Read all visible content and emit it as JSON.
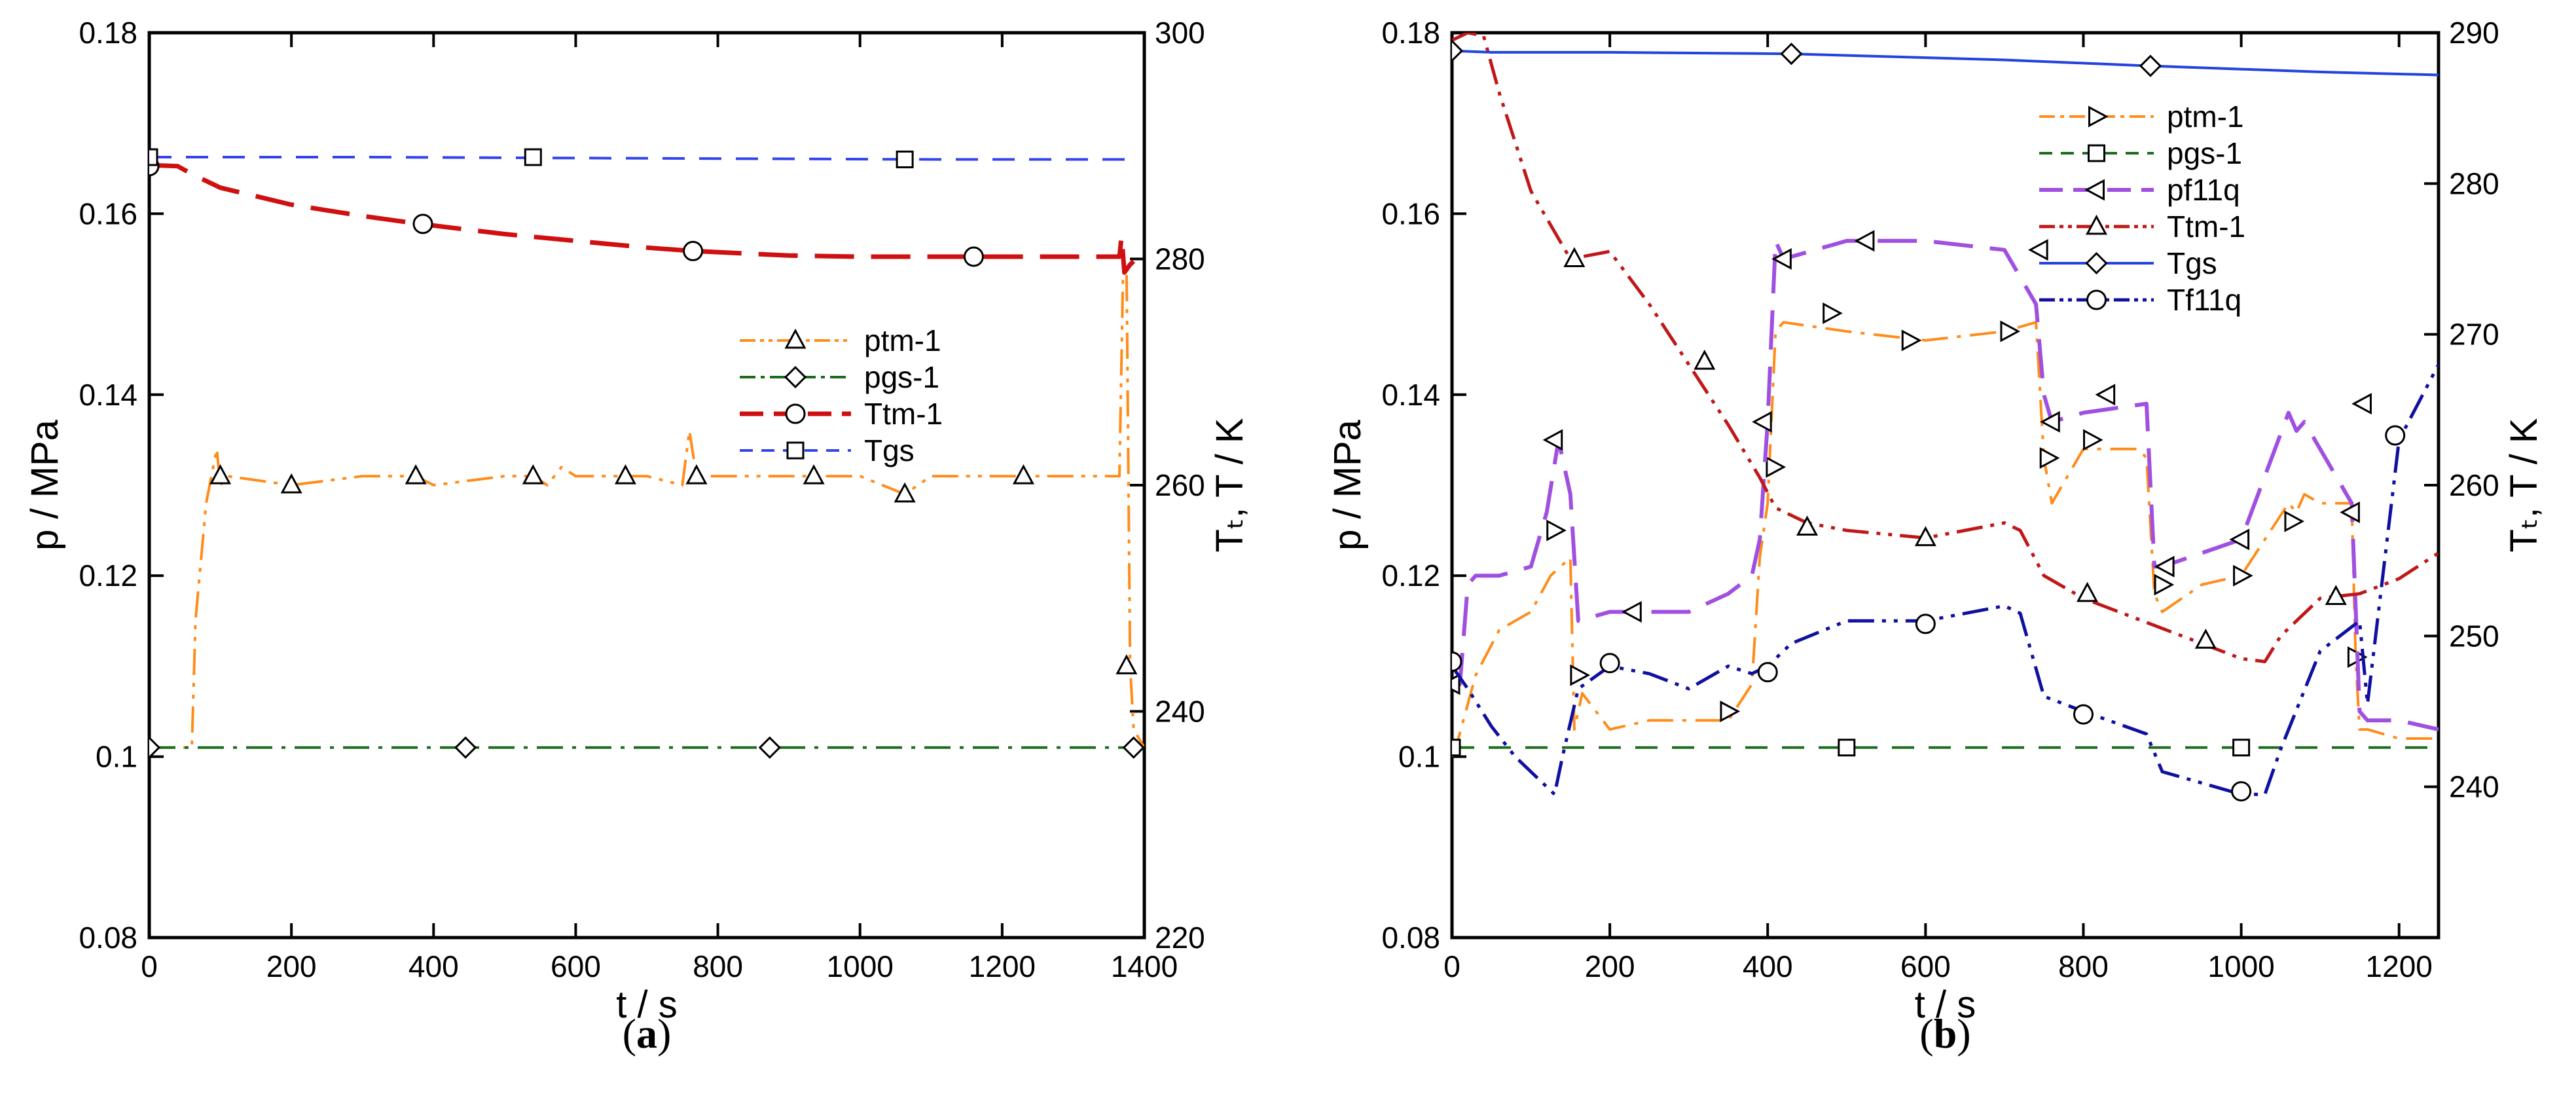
{
  "chart_data": [
    {
      "type": "line",
      "panel_label": "a",
      "xlabel": "t / s",
      "ylabel_left": "p / MPa",
      "ylabel_right": "Tₜ, T / K",
      "xlim": [
        0,
        1400
      ],
      "ylim_left": [
        0.08,
        0.18
      ],
      "ylim_right": [
        220,
        300
      ],
      "x_ticks": [
        "0",
        "200",
        "400",
        "600",
        "800",
        "1000",
        "1200",
        "1400"
      ],
      "y_left_ticks": [
        "0.08",
        "0.1",
        "0.12",
        "0.14",
        "0.16",
        "0.18"
      ],
      "y_right_ticks": [
        "220",
        "240",
        "260",
        "280",
        "300"
      ],
      "legend_position": "center-right",
      "series": [
        {
          "name": "ptm-1",
          "axis": "left",
          "color": "#FF8C1A",
          "dash": "dashdotdot",
          "marker": "triangle",
          "width": 4,
          "x": [
            0,
            60,
            65,
            80,
            95,
            100,
            110,
            200,
            300,
            375,
            400,
            500,
            540,
            560,
            580,
            600,
            700,
            750,
            760,
            770,
            800,
            900,
            1000,
            1063,
            1100,
            1200,
            1300,
            1365,
            1370,
            1375,
            1380,
            1385,
            1400
          ],
          "y": [
            0.101,
            0.101,
            0.115,
            0.128,
            0.134,
            0.13,
            0.131,
            0.13,
            0.131,
            0.131,
            0.13,
            0.131,
            0.131,
            0.13,
            0.132,
            0.131,
            0.131,
            0.13,
            0.136,
            0.131,
            0.131,
            0.131,
            0.131,
            0.129,
            0.131,
            0.131,
            0.131,
            0.131,
            0.153,
            0.154,
            0.11,
            0.103,
            0.101
          ],
          "marker_x": [
            100,
            200,
            375,
            540,
            670,
            770,
            935,
            1063,
            1230,
            1375
          ],
          "marker_y": [
            0.131,
            0.13,
            0.131,
            0.131,
            0.131,
            0.131,
            0.131,
            0.129,
            0.131,
            0.11
          ]
        },
        {
          "name": "pgs-1",
          "axis": "left",
          "color": "#1E6B1E",
          "dash": "dashdot",
          "marker": "diamond",
          "width": 4,
          "x": [
            0,
            1400
          ],
          "y": [
            0.101,
            0.101
          ],
          "marker_x": [
            0,
            445,
            873,
            1385
          ],
          "marker_y": [
            0.101,
            0.101,
            0.101,
            0.101
          ]
        },
        {
          "name": "Ttm-1",
          "axis": "right",
          "color": "#D01010",
          "dash": "longdash",
          "marker": "circle",
          "width": 7,
          "x": [
            0,
            40,
            60,
            100,
            200,
            300,
            380,
            500,
            600,
            700,
            765,
            800,
            900,
            1000,
            1100,
            1160,
            1200,
            1300,
            1365,
            1368,
            1372,
            1380,
            1385
          ],
          "y": [
            288.3,
            288.2,
            287.5,
            286.3,
            284.8,
            283.8,
            283.1,
            282.2,
            281.6,
            281.0,
            280.7,
            280.6,
            280.3,
            280.2,
            280.2,
            280.2,
            280.2,
            280.2,
            280.2,
            282.0,
            278.8,
            279.5,
            279.8
          ],
          "marker_x": [
            0,
            385,
            765,
            1160
          ],
          "marker_y": [
            288.2,
            283.1,
            280.7,
            280.2
          ]
        },
        {
          "name": "Tgs",
          "axis": "right",
          "color": "#3344EE",
          "dash": "dash",
          "marker": "square",
          "width": 4,
          "x": [
            0,
            300,
            700,
            1100,
            1385
          ],
          "y": [
            289.0,
            289.0,
            288.9,
            288.8,
            288.8
          ],
          "marker_x": [
            0,
            540,
            1063
          ],
          "marker_y": [
            289.0,
            289.0,
            288.8
          ]
        }
      ]
    },
    {
      "type": "line",
      "panel_label": "b",
      "xlabel": "t / s",
      "ylabel_left": "p / MPa",
      "ylabel_right": "Tₜ, T / K",
      "xlim": [
        0,
        1250
      ],
      "ylim_left": [
        0.08,
        0.18
      ],
      "ylim_right": [
        230,
        290
      ],
      "x_ticks": [
        "0",
        "200",
        "400",
        "600",
        "800",
        "1000",
        "1200"
      ],
      "y_left_ticks": [
        "0.08",
        "0.1",
        "0.12",
        "0.14",
        "0.16",
        "0.18"
      ],
      "y_right_ticks": [
        "240",
        "250",
        "260",
        "270",
        "280",
        "290"
      ],
      "legend_position": "top-right",
      "series": [
        {
          "name": "ptm-1",
          "axis": "left",
          "color": "#FF8C1A",
          "dash": "dashdot",
          "marker": "triangle-right",
          "width": 4,
          "x": [
            0,
            5,
            30,
            60,
            100,
            125,
            150,
            155,
            165,
            200,
            250,
            300,
            350,
            380,
            390,
            400,
            410,
            420,
            500,
            600,
            700,
            740,
            750,
            760,
            800,
            870,
            880,
            890,
            900,
            950,
            1000,
            1060,
            1070,
            1080,
            1100,
            1140,
            1145,
            1150,
            1160,
            1200,
            1250
          ],
          "y": [
            0.1,
            0.101,
            0.109,
            0.114,
            0.116,
            0.12,
            0.122,
            0.103,
            0.107,
            0.103,
            0.104,
            0.104,
            0.104,
            0.108,
            0.122,
            0.128,
            0.147,
            0.148,
            0.147,
            0.146,
            0.147,
            0.148,
            0.133,
            0.128,
            0.134,
            0.134,
            0.133,
            0.118,
            0.116,
            0.119,
            0.12,
            0.128,
            0.127,
            0.129,
            0.128,
            0.128,
            0.111,
            0.103,
            0.103,
            0.102,
            0.102
          ],
          "marker_x": [
            130,
            160,
            350,
            408,
            480,
            580,
            705,
            755,
            810,
            900,
            1000,
            1065,
            1145
          ],
          "marker_y": [
            0.125,
            0.109,
            0.105,
            0.132,
            0.149,
            0.146,
            0.147,
            0.133,
            0.135,
            0.119,
            0.12,
            0.126,
            0.111
          ]
        },
        {
          "name": "pgs-1",
          "axis": "left",
          "color": "#1E6B1E",
          "dash": "dash",
          "marker": "square",
          "width": 4,
          "x": [
            0,
            1250
          ],
          "y": [
            0.101,
            0.101
          ],
          "marker_x": [
            0,
            500,
            1000
          ],
          "marker_y": [
            0.101,
            0.101,
            0.101
          ]
        },
        {
          "name": "pf11q",
          "axis": "left",
          "color": "#A050E0",
          "dash": "longdash",
          "marker": "triangle-left",
          "width": 6,
          "x": [
            0,
            10,
            20,
            30,
            60,
            100,
            120,
            135,
            150,
            160,
            200,
            250,
            300,
            350,
            380,
            390,
            400,
            410,
            420,
            500,
            600,
            700,
            740,
            750,
            760,
            800,
            880,
            890,
            900,
            1000,
            1060,
            1070,
            1080,
            1140,
            1150,
            1160,
            1200,
            1250
          ],
          "y": [
            0.108,
            0.108,
            0.119,
            0.12,
            0.12,
            0.121,
            0.127,
            0.135,
            0.129,
            0.115,
            0.116,
            0.116,
            0.116,
            0.118,
            0.12,
            0.124,
            0.137,
            0.157,
            0.155,
            0.157,
            0.157,
            0.156,
            0.15,
            0.14,
            0.137,
            0.138,
            0.139,
            0.121,
            0.121,
            0.124,
            0.138,
            0.136,
            0.137,
            0.128,
            0.105,
            0.104,
            0.104,
            0.103
          ],
          "marker_x": [
            0,
            130,
            230,
            395,
            420,
            525,
            745,
            760,
            830,
            905,
            1000,
            1140,
            1155
          ],
          "marker_y": [
            0.108,
            0.135,
            0.116,
            0.137,
            0.155,
            0.157,
            0.156,
            0.137,
            0.14,
            0.121,
            0.124,
            0.127,
            0.139
          ]
        },
        {
          "name": "Ttm-1",
          "axis": "right",
          "color": "#C01818",
          "dash": "dashdotdot",
          "marker": "triangle",
          "width": 5,
          "x": [
            0,
            20,
            40,
            60,
            100,
            150,
            200,
            250,
            300,
            350,
            390,
            410,
            450,
            500,
            600,
            700,
            720,
            750,
            800,
            900,
            950,
            1000,
            1030,
            1050,
            1100,
            1150,
            1200,
            1250
          ],
          "y": [
            289.5,
            290.0,
            289.8,
            286.0,
            279.5,
            275.0,
            275.5,
            272.0,
            268.0,
            264.0,
            260.5,
            258.5,
            257.5,
            257.0,
            256.5,
            257.5,
            257.0,
            254.0,
            252.5,
            250.5,
            249.5,
            248.5,
            248.3,
            250.0,
            252.5,
            252.8,
            253.8,
            255.5
          ],
          "marker_x": [
            155,
            320,
            450,
            600,
            805,
            955,
            1120
          ],
          "marker_y": [
            275.0,
            268.2,
            257.2,
            256.5,
            252.8,
            249.7,
            252.6
          ]
        },
        {
          "name": "Tgs",
          "axis": "right",
          "color": "#2244DD",
          "dash": "solid",
          "marker": "diamond",
          "width": 4,
          "x": [
            0,
            50,
            200,
            430,
            700,
            885,
            1100,
            1250
          ],
          "y": [
            288.8,
            288.7,
            288.7,
            288.6,
            288.2,
            287.8,
            287.4,
            287.2
          ],
          "marker_x": [
            0,
            430,
            885
          ],
          "marker_y": [
            288.8,
            288.6,
            287.8
          ]
        },
        {
          "name": "Tf11q",
          "axis": "right",
          "color": "#1010A0",
          "dash": "dashdotdot",
          "marker": "circle",
          "width": 5,
          "x": [
            0,
            20,
            50,
            80,
            130,
            140,
            160,
            200,
            250,
            300,
            350,
            380,
            400,
            430,
            500,
            600,
            700,
            720,
            750,
            800,
            880,
            900,
            1000,
            1030,
            1050,
            1100,
            1150,
            1160,
            1200,
            1250
          ],
          "y": [
            248.0,
            246.5,
            244.0,
            242.0,
            239.5,
            242.0,
            246.5,
            248.0,
            247.5,
            246.5,
            248.0,
            247.5,
            248.0,
            249.5,
            251.0,
            251.0,
            252.0,
            251.5,
            246.0,
            245.0,
            243.5,
            241.0,
            239.5,
            239.5,
            242.5,
            249.0,
            251.0,
            245.5,
            263.0,
            268.0
          ],
          "marker_x": [
            0,
            200,
            400,
            600,
            800,
            1000,
            1195
          ],
          "marker_y": [
            248.3,
            248.2,
            247.6,
            250.8,
            244.8,
            239.7,
            263.3
          ]
        }
      ]
    }
  ]
}
